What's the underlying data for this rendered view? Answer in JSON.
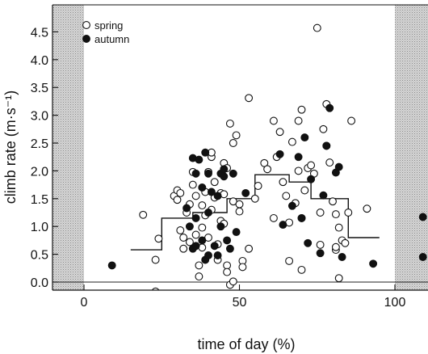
{
  "chart_data": {
    "type": "scatter",
    "xlabel": "time of day (%)",
    "ylabel": "climb rate (m·s⁻¹)",
    "xlim": [
      -10,
      110
    ],
    "ylim": [
      -0.5,
      4.7
    ],
    "x_ticks": [
      0,
      50,
      100
    ],
    "y_ticks": [
      0.0,
      0.5,
      1.0,
      1.5,
      2.0,
      2.5,
      3.0,
      3.5,
      4.0,
      4.5
    ],
    "x_tick_labels": [
      "0",
      "50",
      "100"
    ],
    "y_tick_labels": [
      "0.0",
      "0.5",
      "1.0",
      "1.5",
      "2.0",
      "2.5",
      "3.0",
      "3.5",
      "4.0",
      "4.5"
    ],
    "legend_position": "top-left",
    "night_shading": [
      [
        -10,
        0
      ],
      [
        100,
        110
      ]
    ],
    "series": [
      {
        "name": "spring",
        "marker": "open-circle",
        "points": [
          [
            19,
            1.21
          ],
          [
            23,
            0.4
          ],
          [
            24,
            0.78
          ],
          [
            23,
            -0.17
          ],
          [
            29,
            1.55
          ],
          [
            30,
            1.65
          ],
          [
            30,
            1.48
          ],
          [
            31,
            1.6
          ],
          [
            31,
            0.93
          ],
          [
            32,
            0.8
          ],
          [
            32,
            0.6
          ],
          [
            33,
            1.25
          ],
          [
            34,
            1.4
          ],
          [
            34,
            0.72
          ],
          [
            35,
            1.98
          ],
          [
            35,
            1.75
          ],
          [
            36,
            1.55
          ],
          [
            36,
            0.85
          ],
          [
            37,
            0.3
          ],
          [
            37,
            0.1
          ],
          [
            38,
            1.38
          ],
          [
            38,
            0.98
          ],
          [
            38,
            0.62
          ],
          [
            39,
            1.62
          ],
          [
            39,
            1.2
          ],
          [
            40,
            1.98
          ],
          [
            40,
            0.8
          ],
          [
            41,
            2.25
          ],
          [
            41,
            2.33
          ],
          [
            41,
            1.3
          ],
          [
            42,
            1.8
          ],
          [
            42,
            1.52
          ],
          [
            43,
            0.68
          ],
          [
            43,
            0.4
          ],
          [
            44,
            1.6
          ],
          [
            44,
            1.1
          ],
          [
            45,
            1.58
          ],
          [
            45,
            1.05
          ],
          [
            45,
            2.14
          ],
          [
            46,
            0.3
          ],
          [
            46,
            0.18
          ],
          [
            46,
            2.05
          ],
          [
            47,
            2.85
          ],
          [
            47,
            -0.05
          ],
          [
            48,
            0.01
          ],
          [
            48,
            1.45
          ],
          [
            48,
            2.5
          ],
          [
            49,
            2.64
          ],
          [
            50,
            1.4
          ],
          [
            50,
            1.27
          ],
          [
            51,
            0.38
          ],
          [
            51,
            0.27
          ],
          [
            53,
            3.31
          ],
          [
            53,
            0.6
          ],
          [
            55,
            1.5
          ],
          [
            56,
            1.73
          ],
          [
            58,
            2.14
          ],
          [
            59,
            2.03
          ],
          [
            61,
            1.15
          ],
          [
            61,
            2.9
          ],
          [
            62,
            2.25
          ],
          [
            63,
            2.7
          ],
          [
            64,
            1.8
          ],
          [
            65,
            1.55
          ],
          [
            66,
            0.38
          ],
          [
            66,
            1.07
          ],
          [
            67,
            2.52
          ],
          [
            68,
            1.42
          ],
          [
            69,
            2.0
          ],
          [
            69,
            2.9
          ],
          [
            70,
            3.1
          ],
          [
            70,
            1.15
          ],
          [
            70,
            0.22
          ],
          [
            71,
            1.65
          ],
          [
            72,
            2.05
          ],
          [
            73,
            2.1
          ],
          [
            74,
            1.95
          ],
          [
            75,
            4.57
          ],
          [
            76,
            0.67
          ],
          [
            76,
            1.25
          ],
          [
            77,
            2.75
          ],
          [
            78,
            3.2
          ],
          [
            78,
            2.45
          ],
          [
            79,
            2.15
          ],
          [
            80,
            1.45
          ],
          [
            81,
            0.58
          ],
          [
            81,
            0.63
          ],
          [
            81,
            1.22
          ],
          [
            82,
            0.07
          ],
          [
            82,
            0.98
          ],
          [
            83,
            0.75
          ],
          [
            84,
            0.7
          ],
          [
            85,
            1.25
          ],
          [
            86,
            2.9
          ],
          [
            91,
            1.32
          ]
        ]
      },
      {
        "name": "autumn",
        "marker": "filled-circle",
        "points": [
          [
            9,
            0.3
          ],
          [
            33,
            1.33
          ],
          [
            34,
            1.0
          ],
          [
            35,
            2.23
          ],
          [
            35,
            0.6
          ],
          [
            36,
            1.95
          ],
          [
            36,
            0.65
          ],
          [
            36,
            1.15
          ],
          [
            37,
            2.2
          ],
          [
            38,
            1.7
          ],
          [
            38,
            0.75
          ],
          [
            39,
            2.33
          ],
          [
            39,
            0.4
          ],
          [
            40,
            1.95
          ],
          [
            40,
            1.25
          ],
          [
            40,
            0.48
          ],
          [
            41,
            1.62
          ],
          [
            42,
            0.65
          ],
          [
            43,
            1.55
          ],
          [
            43,
            0.48
          ],
          [
            44,
            1.0
          ],
          [
            44,
            1.95
          ],
          [
            45,
            2.03
          ],
          [
            45,
            1.9
          ],
          [
            46,
            0.75
          ],
          [
            47,
            0.6
          ],
          [
            48,
            1.95
          ],
          [
            49,
            0.9
          ],
          [
            52,
            1.6
          ],
          [
            63,
            2.3
          ],
          [
            64,
            1.03
          ],
          [
            67,
            1.37
          ],
          [
            69,
            2.25
          ],
          [
            70,
            1.15
          ],
          [
            71,
            2.6
          ],
          [
            72,
            0.7
          ],
          [
            73,
            1.85
          ],
          [
            76,
            0.52
          ],
          [
            77,
            1.56
          ],
          [
            78,
            2.45
          ],
          [
            79,
            3.13
          ],
          [
            81,
            1.97
          ],
          [
            82,
            2.07
          ],
          [
            83,
            0.45
          ],
          [
            93,
            0.33
          ],
          [
            109,
            1.17
          ],
          [
            109,
            0.45
          ]
        ]
      }
    ],
    "step_line": [
      [
        15,
        0.58
      ],
      [
        25,
        0.58
      ],
      [
        25,
        1.15
      ],
      [
        35,
        1.15
      ],
      [
        35,
        1.25
      ],
      [
        46,
        1.25
      ],
      [
        46,
        1.5
      ],
      [
        55,
        1.5
      ],
      [
        55,
        1.93
      ],
      [
        66,
        1.93
      ],
      [
        66,
        1.8
      ],
      [
        73,
        1.8
      ],
      [
        73,
        1.5
      ],
      [
        85,
        1.5
      ],
      [
        85,
        0.8
      ],
      [
        95,
        0.8
      ]
    ]
  }
}
